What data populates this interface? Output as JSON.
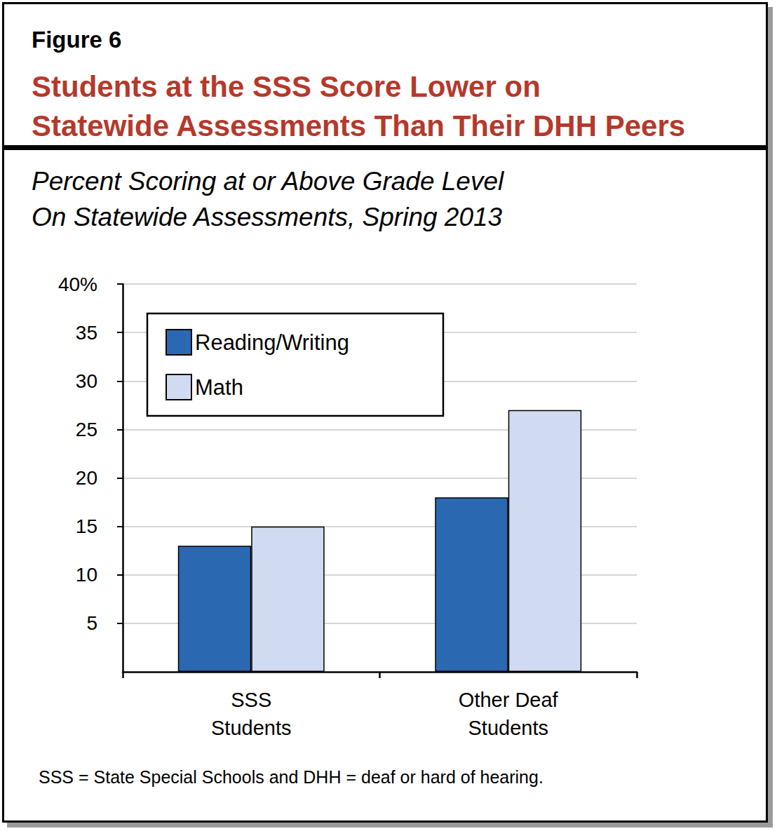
{
  "figure_label": "Figure 6",
  "footnote": "SSS = State Special Schools and DHH = deaf or hard of hearing.",
  "chart_data": {
    "type": "bar",
    "title": "Students at the SSS Score Lower on\nStatewide Assessments Than Their DHH Peers",
    "subtitle": "Percent Scoring at or Above Grade Level\nOn Statewide Assessments, Spring 2013",
    "categories": [
      "SSS\nStudents",
      "Other Deaf\nStudents"
    ],
    "series": [
      {
        "name": "Reading/Writing",
        "color": "#2a68b2",
        "values": [
          13,
          18
        ]
      },
      {
        "name": "Math",
        "color": "#d0daf0",
        "values": [
          15,
          27
        ]
      }
    ],
    "ylim": [
      0,
      40
    ],
    "yticks": [
      5,
      10,
      15,
      20,
      25,
      30,
      35,
      {
        "value": 40,
        "label": "40%"
      }
    ],
    "grid": true,
    "legend": "upper left"
  }
}
